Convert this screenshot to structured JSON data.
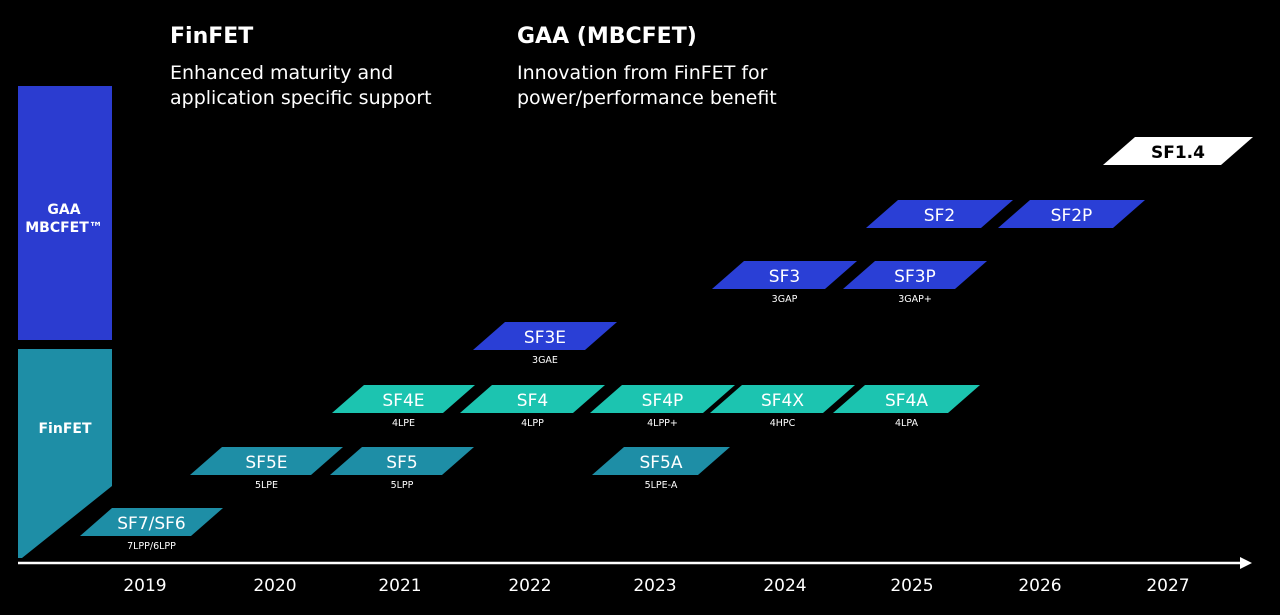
{
  "headers": {
    "finfet": {
      "title": "FinFET",
      "line1": "Enhanced maturity and",
      "line2": "application specific support"
    },
    "gaa": {
      "title": "GAA (MBCFET)",
      "line1": "Innovation from FinFET for",
      "line2": "power/performance benefit"
    }
  },
  "categories": {
    "gaa": {
      "line1": "GAA",
      "line2": "MBCFET™",
      "color": "#2b3cd0"
    },
    "finfet": {
      "label": "FinFET",
      "color": "#1e8ea6"
    }
  },
  "colors": {
    "finfet_mature": "#1e8ea6",
    "finfet_4nm": "#1cc4b0",
    "gaa": "#2a3fd6",
    "future": "#ffffff",
    "background": "#000000"
  },
  "years": [
    "2019",
    "2020",
    "2021",
    "2022",
    "2023",
    "2024",
    "2025",
    "2026",
    "2027"
  ],
  "nodes": [
    {
      "label": "SF7/SF6",
      "sub": "7LPP/6LPP",
      "type": "finfet_mature"
    },
    {
      "label": "SF5E",
      "sub": "5LPE",
      "type": "finfet_mature"
    },
    {
      "label": "SF5",
      "sub": "5LPP",
      "type": "finfet_mature"
    },
    {
      "label": "SF5A",
      "sub": "5LPE-A",
      "type": "finfet_mature"
    },
    {
      "label": "SF4E",
      "sub": "4LPE",
      "type": "finfet_4nm"
    },
    {
      "label": "SF4",
      "sub": "4LPP",
      "type": "finfet_4nm"
    },
    {
      "label": "SF4P",
      "sub": "4LPP+",
      "type": "finfet_4nm"
    },
    {
      "label": "SF4X",
      "sub": "4HPC",
      "type": "finfet_4nm"
    },
    {
      "label": "SF4A",
      "sub": "4LPA",
      "type": "finfet_4nm"
    },
    {
      "label": "SF3E",
      "sub": "3GAE",
      "type": "gaa"
    },
    {
      "label": "SF3",
      "sub": "3GAP",
      "type": "gaa"
    },
    {
      "label": "SF3P",
      "sub": "3GAP+",
      "type": "gaa"
    },
    {
      "label": "SF2",
      "sub": "",
      "type": "gaa"
    },
    {
      "label": "SF2P",
      "sub": "",
      "type": "gaa"
    },
    {
      "label": "SF1.4",
      "sub": "",
      "type": "future"
    }
  ]
}
